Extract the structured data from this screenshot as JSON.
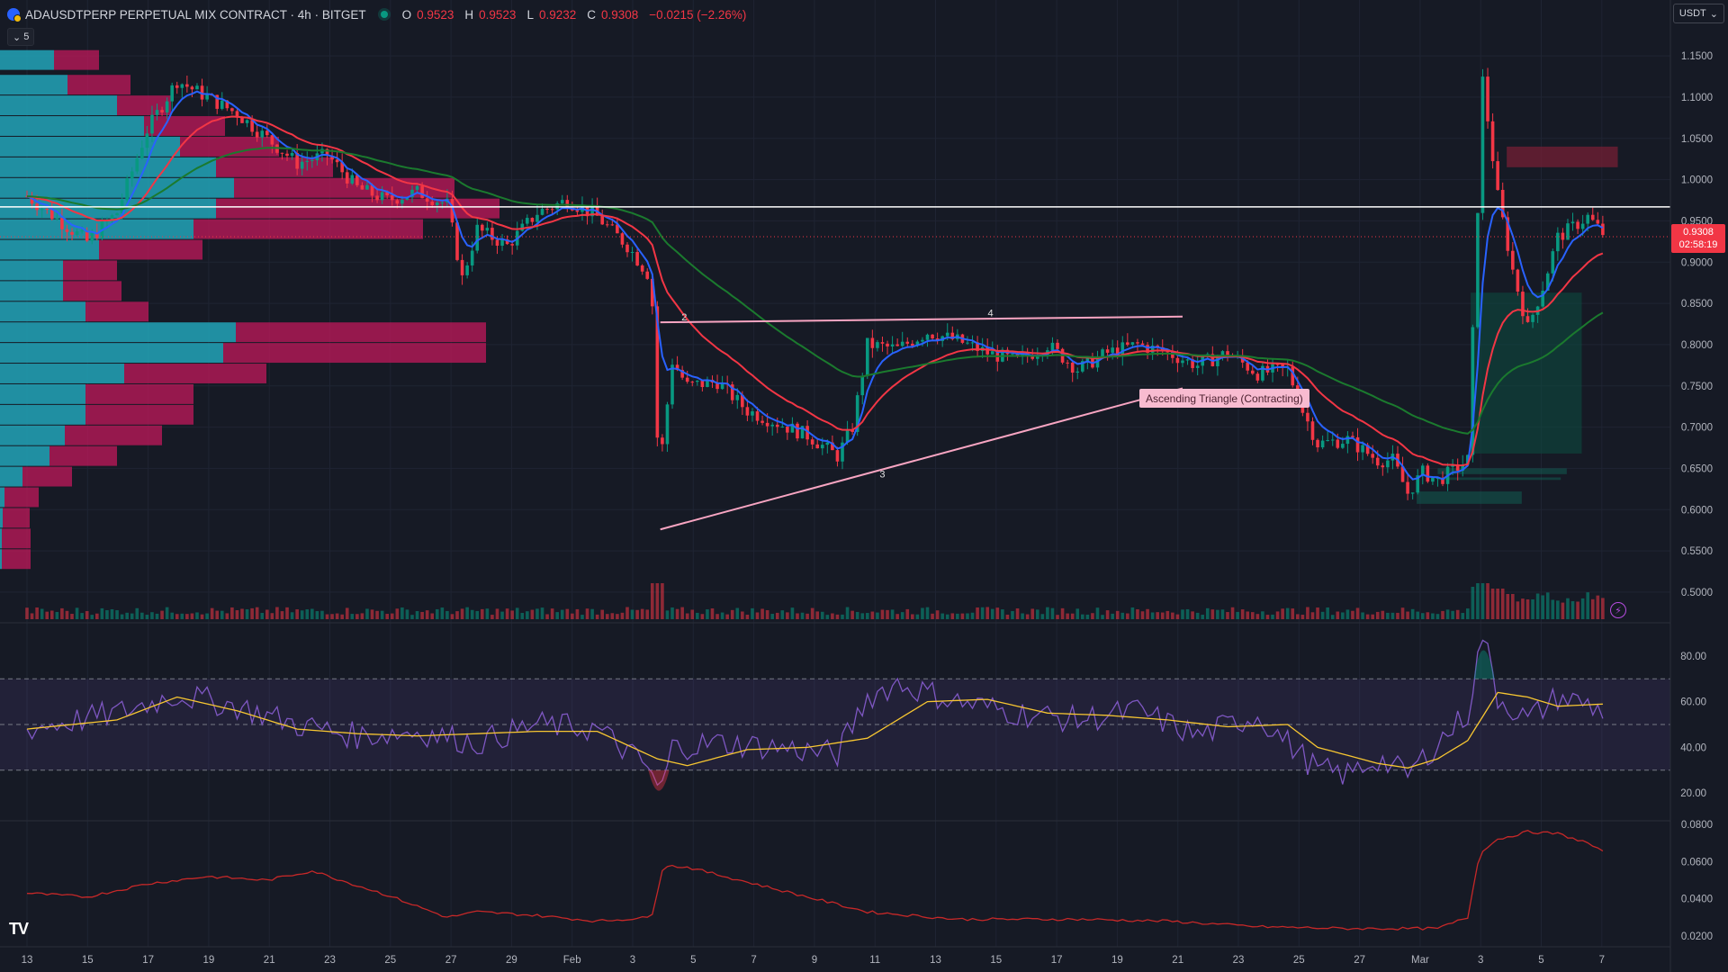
{
  "legend": {
    "symbol": "ADAUSDTPERP PERPETUAL MIX CONTRACT · 4h · BITGET",
    "open_label": "O",
    "open": "0.9523",
    "high_label": "H",
    "high": "0.9523",
    "low_label": "L",
    "low": "0.9232",
    "close_label": "C",
    "close": "0.9308",
    "change": "−0.0215 (−2.26%)"
  },
  "collapse_count": "5",
  "currency": "USDT",
  "price_badge": {
    "price": "0.9308",
    "countdown": "02:58:19"
  },
  "pattern_label": "Ascending Triangle (Contracting)",
  "pattern_points": [
    "2",
    "3",
    "4",
    "5"
  ],
  "logo": "TV",
  "colors": {
    "background": "#161a25",
    "up": "#089981",
    "down": "#f23645",
    "ema_blue": "#2962ff",
    "ema_red": "#f23645",
    "ema_green": "#1b7a2e",
    "triangle": "#f8a5c2",
    "rsi": "#7e57c2",
    "rsi_ma": "#f7c631",
    "profile_up": "#22a4b8",
    "profile_down": "#c2185b"
  },
  "chart_data": {
    "type": "candlestick",
    "timeframe": "4h",
    "price_axis": {
      "ticks": [
        "1.1500",
        "1.1000",
        "1.0500",
        "1.0000",
        "0.9500",
        "0.9000",
        "0.8500",
        "0.8000",
        "0.7500",
        "0.7000",
        "0.6500",
        "0.6000",
        "0.5500",
        "0.5000"
      ],
      "range": [
        0.465,
        1.185
      ]
    },
    "time_axis": [
      "13",
      "15",
      "17",
      "19",
      "21",
      "23",
      "25",
      "27",
      "29",
      "Feb",
      "3",
      "5",
      "7",
      "9",
      "11",
      "13",
      "15",
      "17",
      "19",
      "21",
      "23",
      "25",
      "27",
      "Mar",
      "3",
      "5",
      "7"
    ],
    "close_path": [
      {
        "d": 0,
        "v": 0.98
      },
      {
        "d": 2,
        "v": 0.925
      },
      {
        "d": 3,
        "v": 0.96
      },
      {
        "d": 4,
        "v": 1.06
      },
      {
        "d": 5,
        "v": 1.12
      },
      {
        "d": 6,
        "v": 1.1
      },
      {
        "d": 7,
        "v": 1.08
      },
      {
        "d": 8,
        "v": 1.05
      },
      {
        "d": 9,
        "v": 1.02
      },
      {
        "d": 10,
        "v": 1.03
      },
      {
        "d": 11,
        "v": 0.99
      },
      {
        "d": 12,
        "v": 0.975
      },
      {
        "d": 13,
        "v": 0.985
      },
      {
        "d": 14,
        "v": 0.97
      },
      {
        "d": 14.5,
        "v": 0.88
      },
      {
        "d": 15,
        "v": 0.94
      },
      {
        "d": 16,
        "v": 0.92
      },
      {
        "d": 17,
        "v": 0.96
      },
      {
        "d": 18,
        "v": 0.975
      },
      {
        "d": 19,
        "v": 0.955
      },
      {
        "d": 20,
        "v": 0.92
      },
      {
        "d": 20.8,
        "v": 0.88
      },
      {
        "d": 21.05,
        "v": 0.64
      },
      {
        "d": 21.5,
        "v": 0.78
      },
      {
        "d": 22,
        "v": 0.75
      },
      {
        "d": 23,
        "v": 0.755
      },
      {
        "d": 24,
        "v": 0.72
      },
      {
        "d": 25,
        "v": 0.705
      },
      {
        "d": 26,
        "v": 0.69
      },
      {
        "d": 27,
        "v": 0.665
      },
      {
        "d": 27.5,
        "v": 0.7
      },
      {
        "d": 28,
        "v": 0.8
      },
      {
        "d": 29,
        "v": 0.795
      },
      {
        "d": 30,
        "v": 0.815
      },
      {
        "d": 31,
        "v": 0.805
      },
      {
        "d": 32,
        "v": 0.79
      },
      {
        "d": 33,
        "v": 0.78
      },
      {
        "d": 34,
        "v": 0.8
      },
      {
        "d": 35,
        "v": 0.77
      },
      {
        "d": 36,
        "v": 0.79
      },
      {
        "d": 37,
        "v": 0.8
      },
      {
        "d": 38,
        "v": 0.79
      },
      {
        "d": 39,
        "v": 0.775
      },
      {
        "d": 40,
        "v": 0.79
      },
      {
        "d": 41,
        "v": 0.765
      },
      {
        "d": 42,
        "v": 0.77
      },
      {
        "d": 42.5,
        "v": 0.72
      },
      {
        "d": 43,
        "v": 0.68
      },
      {
        "d": 44,
        "v": 0.685
      },
      {
        "d": 45,
        "v": 0.66
      },
      {
        "d": 45.5,
        "v": 0.66
      },
      {
        "d": 46,
        "v": 0.62
      },
      {
        "d": 46.5,
        "v": 0.645
      },
      {
        "d": 47,
        "v": 0.635
      },
      {
        "d": 48,
        "v": 0.66
      },
      {
        "d": 48.5,
        "v": 1.12
      },
      {
        "d": 49,
        "v": 0.98
      },
      {
        "d": 49.5,
        "v": 0.89
      },
      {
        "d": 50,
        "v": 0.82
      },
      {
        "d": 50.5,
        "v": 0.87
      },
      {
        "d": 51,
        "v": 0.93
      },
      {
        "d": 52,
        "v": 0.955
      },
      {
        "d": 52.6,
        "v": 0.931
      }
    ],
    "volume_profile": [
      {
        "price": 1.145,
        "up": 60,
        "down": 50
      },
      {
        "price": 1.115,
        "up": 75,
        "down": 70
      },
      {
        "price": 1.09,
        "up": 130,
        "down": 60
      },
      {
        "price": 1.065,
        "up": 160,
        "down": 90
      },
      {
        "price": 1.04,
        "up": 200,
        "down": 110
      },
      {
        "price": 1.015,
        "up": 240,
        "down": 130
      },
      {
        "price": 0.99,
        "up": 260,
        "down": 245
      },
      {
        "price": 0.965,
        "up": 240,
        "down": 315
      },
      {
        "price": 0.94,
        "up": 215,
        "down": 255
      },
      {
        "price": 0.915,
        "up": 110,
        "down": 115
      },
      {
        "price": 0.89,
        "up": 70,
        "down": 60
      },
      {
        "price": 0.865,
        "up": 70,
        "down": 65
      },
      {
        "price": 0.84,
        "up": 95,
        "down": 70
      },
      {
        "price": 0.815,
        "up": 262,
        "down": 278
      },
      {
        "price": 0.79,
        "up": 248,
        "down": 292
      },
      {
        "price": 0.765,
        "up": 138,
        "down": 158
      },
      {
        "price": 0.74,
        "up": 95,
        "down": 120
      },
      {
        "price": 0.715,
        "up": 95,
        "down": 120
      },
      {
        "price": 0.69,
        "up": 72,
        "down": 108
      },
      {
        "price": 0.665,
        "up": 55,
        "down": 75
      },
      {
        "price": 0.64,
        "up": 25,
        "down": 55
      },
      {
        "price": 0.615,
        "up": 5,
        "down": 38
      },
      {
        "price": 0.59,
        "up": 3,
        "down": 30
      },
      {
        "price": 0.565,
        "up": 2,
        "down": 32
      },
      {
        "price": 0.54,
        "up": 2,
        "down": 32
      }
    ],
    "levels": {
      "white_horizontal": 0.967,
      "last_price": 0.9308
    },
    "triangle": {
      "upper": [
        {
          "d": 21.1,
          "v": 0.827
        },
        {
          "d": 38.5,
          "v": 0.834
        }
      ],
      "lower": [
        {
          "d": 21.1,
          "v": 0.576
        },
        {
          "d": 38.5,
          "v": 0.747
        }
      ],
      "points": [
        {
          "label": "2",
          "d": 21.9,
          "v": 0.827
        },
        {
          "label": "3",
          "d": 28.5,
          "v": 0.652
        },
        {
          "label": "4",
          "d": 32.1,
          "v": 0.832
        },
        {
          "label": "5",
          "d": 38.3,
          "v": 0.748
        }
      ]
    },
    "boxes": [
      {
        "kind": "supply",
        "d1": 49.3,
        "d2": 53,
        "v1": 1.04,
        "v2": 1.015
      },
      {
        "kind": "position",
        "d1": 48.1,
        "d2": 51.8,
        "v1": 0.863,
        "v2": 0.668
      },
      {
        "kind": "demand",
        "d1": 47,
        "d2": 51.3,
        "v1": 0.65,
        "v2": 0.643
      },
      {
        "kind": "demand",
        "d1": 47,
        "d2": 51.1,
        "v1": 0.639,
        "v2": 0.636
      },
      {
        "kind": "demand",
        "d1": 46.3,
        "d2": 49.8,
        "v1": 0.622,
        "v2": 0.607
      }
    ],
    "rsi_axis": {
      "ticks": [
        "80.00",
        "60.00",
        "40.00",
        "20.00"
      ],
      "upper_band": 70,
      "mid": 50,
      "lower_band": 30
    },
    "rsi_path": [
      {
        "d": 0,
        "v": 48
      },
      {
        "d": 3,
        "v": 55
      },
      {
        "d": 5,
        "v": 63
      },
      {
        "d": 7,
        "v": 58
      },
      {
        "d": 9,
        "v": 50
      },
      {
        "d": 11,
        "v": 45
      },
      {
        "d": 13,
        "v": 47
      },
      {
        "d": 15,
        "v": 42
      },
      {
        "d": 17,
        "v": 50
      },
      {
        "d": 19,
        "v": 48
      },
      {
        "d": 20.8,
        "v": 30
      },
      {
        "d": 21.05,
        "v": 18
      },
      {
        "d": 21.5,
        "v": 40
      },
      {
        "d": 23,
        "v": 42
      },
      {
        "d": 25,
        "v": 40
      },
      {
        "d": 27,
        "v": 37
      },
      {
        "d": 28,
        "v": 62
      },
      {
        "d": 29,
        "v": 68
      },
      {
        "d": 31,
        "v": 60
      },
      {
        "d": 33,
        "v": 55
      },
      {
        "d": 35,
        "v": 52
      },
      {
        "d": 37,
        "v": 56
      },
      {
        "d": 39,
        "v": 45
      },
      {
        "d": 41,
        "v": 54
      },
      {
        "d": 43,
        "v": 30
      },
      {
        "d": 44,
        "v": 28
      },
      {
        "d": 45,
        "v": 35
      },
      {
        "d": 46,
        "v": 28
      },
      {
        "d": 47,
        "v": 42
      },
      {
        "d": 48,
        "v": 55
      },
      {
        "d": 48.5,
        "v": 90
      },
      {
        "d": 49,
        "v": 62
      },
      {
        "d": 50,
        "v": 52
      },
      {
        "d": 51,
        "v": 62
      },
      {
        "d": 52,
        "v": 59
      },
      {
        "d": 52.6,
        "v": 55
      }
    ],
    "rsi_ma_path": [
      {
        "d": 0,
        "v": 48
      },
      {
        "d": 3,
        "v": 52
      },
      {
        "d": 5,
        "v": 62
      },
      {
        "d": 7,
        "v": 56
      },
      {
        "d": 9,
        "v": 48
      },
      {
        "d": 11,
        "v": 46
      },
      {
        "d": 13,
        "v": 45
      },
      {
        "d": 15,
        "v": 46
      },
      {
        "d": 17,
        "v": 47
      },
      {
        "d": 19,
        "v": 47
      },
      {
        "d": 21,
        "v": 35
      },
      {
        "d": 22,
        "v": 32
      },
      {
        "d": 24,
        "v": 39
      },
      {
        "d": 26,
        "v": 40
      },
      {
        "d": 28,
        "v": 44
      },
      {
        "d": 30,
        "v": 60
      },
      {
        "d": 32,
        "v": 61
      },
      {
        "d": 34,
        "v": 55
      },
      {
        "d": 36,
        "v": 54
      },
      {
        "d": 38,
        "v": 52
      },
      {
        "d": 40,
        "v": 49
      },
      {
        "d": 42,
        "v": 50
      },
      {
        "d": 43,
        "v": 40
      },
      {
        "d": 45,
        "v": 33
      },
      {
        "d": 46,
        "v": 31
      },
      {
        "d": 47,
        "v": 35
      },
      {
        "d": 48,
        "v": 43
      },
      {
        "d": 49,
        "v": 64
      },
      {
        "d": 50,
        "v": 62
      },
      {
        "d": 51,
        "v": 58
      },
      {
        "d": 52.6,
        "v": 59
      }
    ],
    "osc_axis": {
      "ticks": [
        "0.0800",
        "0.0600",
        "0.0400",
        "0.0200"
      ],
      "range": [
        0.015,
        0.085
      ]
    },
    "osc_path": [
      {
        "d": 0,
        "v": 0.043
      },
      {
        "d": 2,
        "v": 0.041
      },
      {
        "d": 4,
        "v": 0.048
      },
      {
        "d": 6,
        "v": 0.052
      },
      {
        "d": 8,
        "v": 0.05
      },
      {
        "d": 9.5,
        "v": 0.055
      },
      {
        "d": 12,
        "v": 0.042
      },
      {
        "d": 14,
        "v": 0.03
      },
      {
        "d": 15,
        "v": 0.033
      },
      {
        "d": 17,
        "v": 0.031
      },
      {
        "d": 19,
        "v": 0.028
      },
      {
        "d": 20.8,
        "v": 0.03
      },
      {
        "d": 21.2,
        "v": 0.058
      },
      {
        "d": 22,
        "v": 0.057
      },
      {
        "d": 25,
        "v": 0.045
      },
      {
        "d": 28,
        "v": 0.033
      },
      {
        "d": 31,
        "v": 0.029
      },
      {
        "d": 35,
        "v": 0.029
      },
      {
        "d": 38,
        "v": 0.028
      },
      {
        "d": 41,
        "v": 0.025
      },
      {
        "d": 44,
        "v": 0.024
      },
      {
        "d": 47,
        "v": 0.024
      },
      {
        "d": 48,
        "v": 0.03
      },
      {
        "d": 48.4,
        "v": 0.065
      },
      {
        "d": 49,
        "v": 0.072
      },
      {
        "d": 50,
        "v": 0.076
      },
      {
        "d": 51,
        "v": 0.075
      },
      {
        "d": 52,
        "v": 0.07
      },
      {
        "d": 52.6,
        "v": 0.064
      }
    ],
    "volume_spikes": [
      {
        "d": 21,
        "v": 1.0
      },
      {
        "d": 48.2,
        "v": 0.9
      },
      {
        "d": 48.5,
        "v": 1.0
      },
      {
        "d": 49,
        "v": 0.85
      },
      {
        "d": 49.4,
        "v": 0.7
      },
      {
        "d": 50,
        "v": 0.55
      },
      {
        "d": 51,
        "v": 0.45
      },
      {
        "d": 52,
        "v": 0.35
      }
    ]
  }
}
